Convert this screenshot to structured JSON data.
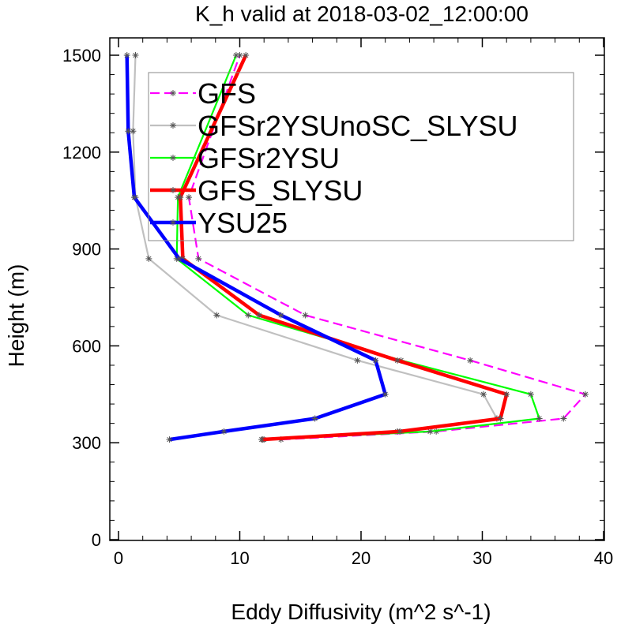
{
  "chart_data": {
    "type": "line",
    "title": "K_h valid at 2018-03-02_12:00:00",
    "xlabel": "Eddy Diffusivity (m^2 s^-1)",
    "ylabel": "Height (m)",
    "xlim": [
      0,
      40
    ],
    "ylim": [
      0,
      1500
    ],
    "xticks": [
      0,
      10,
      20,
      30,
      40
    ],
    "yticks": [
      0,
      300,
      600,
      900,
      1200,
      1500
    ],
    "grid": false,
    "legend_position": "top-right",
    "series": [
      {
        "name": "GFS",
        "color": "#ff00ff",
        "style": "dashed",
        "x": [
          13.4,
          26.2,
          36.7,
          38.5,
          29.0,
          15.4,
          6.6,
          5.8,
          10.0
        ],
        "y": [
          310,
          335,
          375,
          450,
          555,
          695,
          870,
          1060,
          1500
        ]
      },
      {
        "name": "GFSr2YSUnoSC_SLYSU",
        "color": "#c0c0c0",
        "style": "solid",
        "x": [
          12.0,
          23.0,
          31.2,
          30.1,
          19.7,
          8.1,
          2.5,
          1.4,
          1.2,
          1.4
        ],
        "y": [
          310,
          335,
          375,
          450,
          555,
          695,
          870,
          1060,
          1265,
          1500
        ]
      },
      {
        "name": "GFSr2YSU",
        "color": "#00ff00",
        "style": "solid",
        "x": [
          11.9,
          25.7,
          34.7,
          34.0,
          23.3,
          10.7,
          4.8,
          4.9,
          9.7
        ],
        "y": [
          310,
          335,
          375,
          450,
          555,
          695,
          870,
          1060,
          1500
        ]
      },
      {
        "name": "GFS_SLYSU",
        "color": "#ff0000",
        "style": "solid",
        "x": [
          11.8,
          23.2,
          31.5,
          32.0,
          23.0,
          11.6,
          5.3,
          5.1,
          10.5
        ],
        "y": [
          310,
          335,
          375,
          450,
          555,
          695,
          870,
          1060,
          1500
        ]
      },
      {
        "name": "YSU25",
        "color": "#0000ff",
        "style": "solid",
        "x": [
          4.2,
          8.7,
          16.2,
          22.0,
          21.2,
          13.4,
          5.0,
          1.3,
          0.8,
          0.7
        ],
        "y": [
          310,
          335,
          375,
          450,
          555,
          695,
          870,
          1060,
          1265,
          1500
        ]
      }
    ]
  }
}
